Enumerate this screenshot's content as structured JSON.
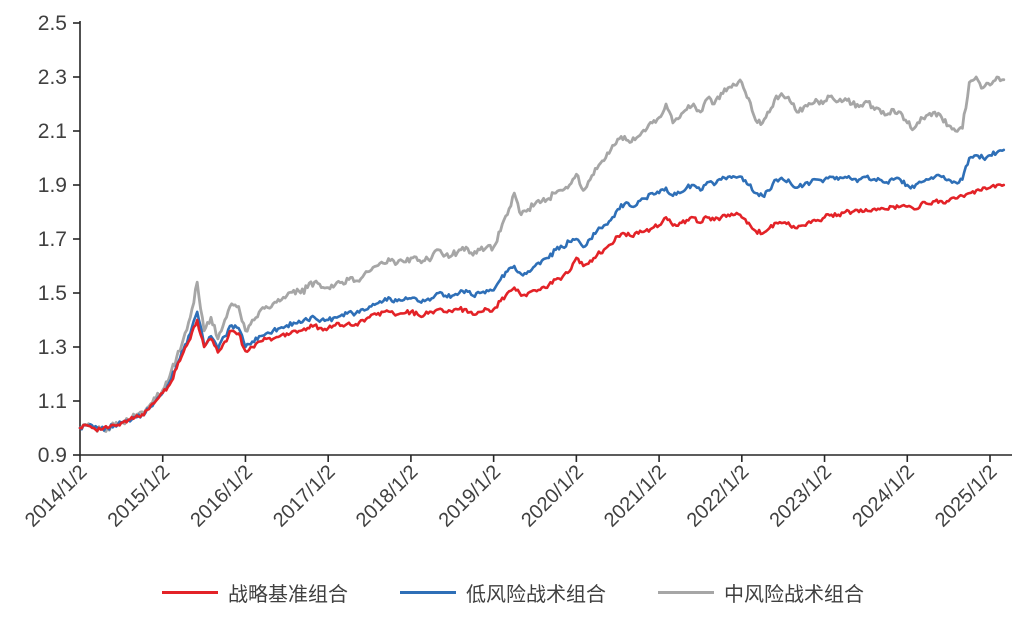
{
  "page": {
    "background": "#ffffff"
  },
  "chart_data": {
    "type": "line",
    "title": "",
    "xlabel": "",
    "ylabel": "",
    "grid": false,
    "legend_position": "bottom",
    "axis_color": "#262626",
    "label_color": "#404040",
    "ylim": [
      0.9,
      2.5
    ],
    "y_ticks": [
      2.5,
      2.3,
      2.1,
      1.9,
      1.7,
      1.5,
      1.3,
      1.1,
      0.9
    ],
    "x_tick_labels": [
      "2014/1/2",
      "2015/1/2",
      "2016/1/2",
      "2017/1/2",
      "2018/1/2",
      "2019/1/2",
      "2020/1/2",
      "2021/1/2",
      "2022/1/2",
      "2023/1/2",
      "2024/1/2",
      "2025/1/2"
    ],
    "x_frequency": "monthly",
    "x_start": "2014/1",
    "x_end": "2025/3",
    "series": [
      {
        "name": "战略基准组合",
        "color": "#E32227",
        "values": [
          1.0,
          1.01,
          1.0,
          0.995,
          1.0,
          1.01,
          1.02,
          1.03,
          1.04,
          1.05,
          1.07,
          1.1,
          1.13,
          1.16,
          1.22,
          1.28,
          1.33,
          1.4,
          1.3,
          1.33,
          1.28,
          1.32,
          1.36,
          1.35,
          1.285,
          1.3,
          1.32,
          1.33,
          1.33,
          1.34,
          1.35,
          1.36,
          1.36,
          1.37,
          1.38,
          1.37,
          1.37,
          1.38,
          1.38,
          1.39,
          1.385,
          1.4,
          1.41,
          1.42,
          1.43,
          1.43,
          1.42,
          1.425,
          1.43,
          1.42,
          1.42,
          1.43,
          1.44,
          1.43,
          1.43,
          1.44,
          1.44,
          1.42,
          1.43,
          1.44,
          1.44,
          1.47,
          1.5,
          1.52,
          1.49,
          1.5,
          1.51,
          1.52,
          1.53,
          1.55,
          1.56,
          1.58,
          1.63,
          1.6,
          1.62,
          1.64,
          1.66,
          1.68,
          1.71,
          1.72,
          1.71,
          1.72,
          1.73,
          1.74,
          1.75,
          1.78,
          1.75,
          1.76,
          1.77,
          1.78,
          1.76,
          1.78,
          1.77,
          1.78,
          1.79,
          1.79,
          1.78,
          1.76,
          1.73,
          1.72,
          1.74,
          1.76,
          1.76,
          1.75,
          1.74,
          1.75,
          1.76,
          1.77,
          1.78,
          1.79,
          1.79,
          1.8,
          1.8,
          1.8,
          1.81,
          1.81,
          1.81,
          1.81,
          1.82,
          1.82,
          1.82,
          1.81,
          1.83,
          1.83,
          1.84,
          1.84,
          1.84,
          1.85,
          1.86,
          1.87,
          1.88,
          1.89,
          1.89,
          1.9,
          1.9
        ]
      },
      {
        "name": "低风险战术组合",
        "color": "#2E6FB7",
        "values": [
          1.0,
          1.01,
          1.0,
          0.995,
          1.0,
          1.01,
          1.02,
          1.03,
          1.04,
          1.05,
          1.07,
          1.1,
          1.13,
          1.17,
          1.23,
          1.29,
          1.35,
          1.43,
          1.31,
          1.34,
          1.29,
          1.34,
          1.38,
          1.37,
          1.3,
          1.32,
          1.34,
          1.35,
          1.36,
          1.37,
          1.38,
          1.39,
          1.39,
          1.4,
          1.41,
          1.4,
          1.4,
          1.41,
          1.42,
          1.43,
          1.425,
          1.44,
          1.45,
          1.46,
          1.47,
          1.48,
          1.47,
          1.475,
          1.48,
          1.47,
          1.47,
          1.48,
          1.5,
          1.49,
          1.49,
          1.5,
          1.51,
          1.49,
          1.5,
          1.51,
          1.51,
          1.55,
          1.58,
          1.6,
          1.57,
          1.58,
          1.6,
          1.62,
          1.63,
          1.66,
          1.67,
          1.69,
          1.7,
          1.67,
          1.7,
          1.73,
          1.75,
          1.77,
          1.81,
          1.83,
          1.82,
          1.84,
          1.85,
          1.87,
          1.87,
          1.89,
          1.86,
          1.87,
          1.89,
          1.9,
          1.88,
          1.91,
          1.9,
          1.92,
          1.93,
          1.93,
          1.93,
          1.9,
          1.87,
          1.86,
          1.88,
          1.92,
          1.92,
          1.91,
          1.89,
          1.9,
          1.91,
          1.92,
          1.92,
          1.93,
          1.92,
          1.93,
          1.92,
          1.92,
          1.93,
          1.92,
          1.92,
          1.91,
          1.92,
          1.92,
          1.9,
          1.89,
          1.91,
          1.92,
          1.93,
          1.93,
          1.92,
          1.91,
          1.92,
          2.0,
          2.01,
          2.0,
          2.01,
          2.02,
          2.03
        ]
      },
      {
        "name": "中风险战术组合",
        "color": "#A6A6A6",
        "values": [
          1.0,
          1.01,
          1.0,
          0.995,
          1.0,
          1.01,
          1.02,
          1.03,
          1.045,
          1.06,
          1.08,
          1.11,
          1.14,
          1.19,
          1.26,
          1.33,
          1.41,
          1.54,
          1.36,
          1.41,
          1.33,
          1.4,
          1.46,
          1.45,
          1.36,
          1.4,
          1.43,
          1.45,
          1.46,
          1.47,
          1.49,
          1.51,
          1.5,
          1.52,
          1.54,
          1.52,
          1.52,
          1.53,
          1.54,
          1.55,
          1.545,
          1.56,
          1.58,
          1.6,
          1.61,
          1.62,
          1.61,
          1.615,
          1.63,
          1.62,
          1.62,
          1.63,
          1.66,
          1.64,
          1.64,
          1.66,
          1.67,
          1.64,
          1.66,
          1.67,
          1.67,
          1.73,
          1.79,
          1.87,
          1.79,
          1.81,
          1.83,
          1.84,
          1.85,
          1.87,
          1.88,
          1.9,
          1.94,
          1.88,
          1.92,
          1.96,
          1.99,
          2.03,
          2.07,
          2.08,
          2.06,
          2.08,
          2.1,
          2.13,
          2.15,
          2.2,
          2.13,
          2.15,
          2.18,
          2.2,
          2.17,
          2.22,
          2.2,
          2.24,
          2.26,
          2.27,
          2.28,
          2.22,
          2.14,
          2.13,
          2.17,
          2.23,
          2.23,
          2.21,
          2.17,
          2.19,
          2.2,
          2.21,
          2.21,
          2.23,
          2.21,
          2.22,
          2.2,
          2.19,
          2.21,
          2.19,
          2.18,
          2.16,
          2.18,
          2.17,
          2.13,
          2.11,
          2.15,
          2.16,
          2.17,
          2.15,
          2.12,
          2.1,
          2.11,
          2.28,
          2.3,
          2.26,
          2.27,
          2.3,
          2.29
        ]
      }
    ]
  }
}
